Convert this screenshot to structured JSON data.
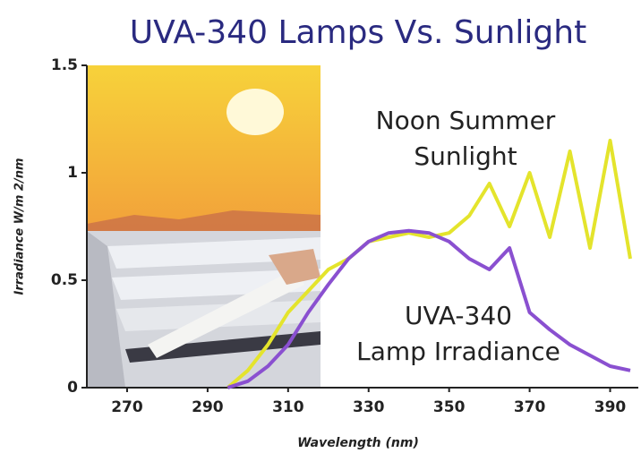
{
  "chart_data": {
    "type": "line",
    "title": "UVA-340 Lamps Vs. Sunlight",
    "x_label": "Wavelength (nm)",
    "y_label": "Irradiance W/m 2/nm",
    "x": [
      295,
      300,
      305,
      310,
      315,
      320,
      325,
      330,
      335,
      340,
      345,
      350,
      355,
      360,
      365,
      370,
      375,
      380,
      385,
      390,
      395
    ],
    "series": [
      {
        "name": "Noon Summer Sunlight",
        "color": "#e4e42c",
        "values": [
          0,
          0.08,
          0.2,
          0.35,
          0.45,
          0.55,
          0.6,
          0.68,
          0.7,
          0.72,
          0.7,
          0.72,
          0.8,
          0.95,
          0.75,
          1.0,
          0.7,
          1.1,
          0.65,
          1.15,
          0.6
        ]
      },
      {
        "name": "UVA-340 Lamp Irradiance",
        "color": "#8a50d0",
        "values": [
          0,
          0.03,
          0.1,
          0.2,
          0.35,
          0.48,
          0.6,
          0.68,
          0.72,
          0.73,
          0.72,
          0.68,
          0.6,
          0.55,
          0.65,
          0.35,
          0.27,
          0.2,
          0.15,
          0.1,
          0.08
        ]
      }
    ],
    "annotations": [
      {
        "lines": [
          "Noon Summer",
          "Sunlight"
        ]
      },
      {
        "lines": [
          "UVA-340",
          "Lamp Irradiance"
        ]
      }
    ],
    "xlim": [
      260,
      397
    ],
    "ylim": [
      0,
      1.5
    ],
    "xticks": [
      270,
      290,
      310,
      330,
      350,
      370,
      390
    ],
    "yticks": [
      0,
      0.5,
      1,
      1.5
    ],
    "grid": false
  }
}
